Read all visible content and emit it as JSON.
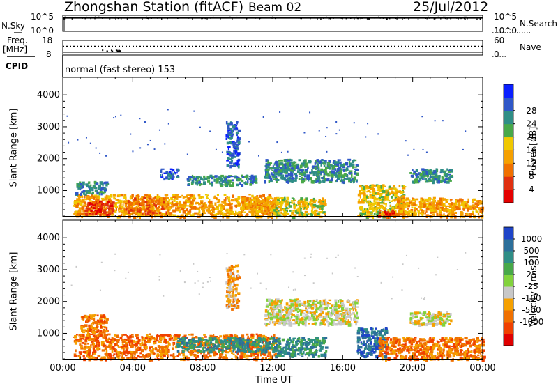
{
  "header": {
    "station": "Zhongshan Station (fitACF)",
    "beam": "Beam 02",
    "date": "25/Jul/2012"
  },
  "nsky_panel": {
    "left_label": "N.Sky",
    "left_ticks": [
      "10^5",
      "10^0"
    ],
    "right_ticks": [
      "10^5",
      "10^0"
    ],
    "right_label": "N.Search",
    "left_range": [
      0,
      5
    ],
    "trace_level": 4.2
  },
  "freq_panel": {
    "left_label_line1": "Freq.",
    "left_label_line2": "[MHz]",
    "left_ticks": [
      "18",
      "8"
    ],
    "right_ticks": [
      "60",
      "0"
    ],
    "right_label": "Nave",
    "freq_range": [
      8,
      18
    ],
    "freq_value": 10,
    "nave_range": [
      0,
      60
    ],
    "nave_value": 36
  },
  "cpid": {
    "label": "CPID",
    "value": "normal (fast stereo) 153"
  },
  "chart_data": [
    {
      "type": "heatmap",
      "ylabel": "Slant Range [km]",
      "y_ticks": [
        "1000",
        "2000",
        "3000",
        "4000"
      ],
      "ylim": [
        180,
        4550
      ],
      "xlim": [
        0,
        24
      ],
      "colorbar": {
        "label": "Power [dB]",
        "ticks": [
          "4",
          "8",
          "12",
          "16",
          "20",
          "24",
          "28"
        ],
        "colors": [
          "#0a1fff",
          "#2f57c8",
          "#2f8e86",
          "#48a849",
          "#f0c800",
          "#f5a000",
          "#f07000",
          "#e03010",
          "#e40000"
        ]
      },
      "echo_bands": [
        {
          "t_start": 0.6,
          "t_end": 12.2,
          "r_min": 200,
          "r_max": 900,
          "level": 5
        },
        {
          "t_start": 1.2,
          "t_end": 2.8,
          "r_min": 250,
          "r_max": 700,
          "level": 7
        },
        {
          "t_start": 3.5,
          "t_end": 6.0,
          "r_min": 300,
          "r_max": 800,
          "level": 6
        },
        {
          "t_start": 10.2,
          "t_end": 12.0,
          "r_min": 450,
          "r_max": 800,
          "level": 5
        },
        {
          "t_start": 0.7,
          "t_end": 2.5,
          "r_min": 900,
          "r_max": 1300,
          "level": 2
        },
        {
          "t_start": 5.5,
          "t_end": 6.6,
          "r_min": 1400,
          "r_max": 1700,
          "level": 1
        },
        {
          "t_start": 7.0,
          "t_end": 11.0,
          "r_min": 1200,
          "r_max": 1500,
          "level": 2
        },
        {
          "t_start": 11.5,
          "t_end": 16.8,
          "r_min": 1300,
          "r_max": 2000,
          "level": 2
        },
        {
          "t_start": 12.0,
          "t_end": 15.0,
          "r_min": 200,
          "r_max": 800,
          "level": 4
        },
        {
          "t_start": 16.8,
          "t_end": 19.5,
          "r_min": 200,
          "r_max": 1200,
          "level": 4
        },
        {
          "t_start": 19.0,
          "t_end": 24.0,
          "r_min": 200,
          "r_max": 800,
          "level": 5
        },
        {
          "t_start": 18.0,
          "t_end": 19.0,
          "r_min": 200,
          "r_max": 400,
          "level": 7
        },
        {
          "t_start": 19.8,
          "t_end": 22.2,
          "r_min": 1300,
          "r_max": 1700,
          "level": 2
        },
        {
          "t_start": 9.3,
          "t_end": 10.0,
          "r_min": 1800,
          "r_max": 3200,
          "level": 1
        }
      ]
    },
    {
      "type": "heatmap",
      "ylabel": "Velocity [m s-1]",
      "ylabel_left": "Slant Range [km]",
      "y_ticks": [
        "1000",
        "2000",
        "3000",
        "4000"
      ],
      "ylim": [
        180,
        4550
      ],
      "xlim": [
        0,
        24
      ],
      "x_ticks": [
        "00:00",
        "04:00",
        "08:00",
        "12:00",
        "16:00",
        "20:00",
        "00:00"
      ],
      "xlabel": "Time UT",
      "colorbar": {
        "label": "Velocity",
        "unit_base": "[m s",
        "unit_exp": "-1",
        "unit_close": "]",
        "ticks": [
          "1000",
          "500",
          "100",
          "25",
          "-25",
          "-100",
          "-500",
          "-1000"
        ],
        "colors": [
          "#1e44c8",
          "#2c6f9a",
          "#2f8e86",
          "#48a849",
          "#82d23c",
          "#c8c8c8",
          "#f5a000",
          "#f07000",
          "#f04000",
          "#e00000"
        ]
      },
      "echo_bands": [
        {
          "t_start": 0.6,
          "t_end": 12.2,
          "r_min": 200,
          "r_max": 1000,
          "level": 7
        },
        {
          "t_start": 6.5,
          "t_end": 12.0,
          "r_min": 450,
          "r_max": 900,
          "level": 2
        },
        {
          "t_start": 11.5,
          "t_end": 16.8,
          "r_min": 1300,
          "r_max": 2100,
          "level": 5
        },
        {
          "t_start": 12.0,
          "t_end": 15.0,
          "r_min": 300,
          "r_max": 900,
          "level": 2
        },
        {
          "t_start": 16.8,
          "t_end": 18.5,
          "r_min": 300,
          "r_max": 1200,
          "level": 1
        },
        {
          "t_start": 18.0,
          "t_end": 24.0,
          "r_min": 200,
          "r_max": 900,
          "level": 7
        },
        {
          "t_start": 19.8,
          "t_end": 22.2,
          "r_min": 1300,
          "r_max": 1700,
          "level": 5
        },
        {
          "t_start": 1.0,
          "t_end": 2.5,
          "r_min": 900,
          "r_max": 1600,
          "level": 7
        },
        {
          "t_start": 9.3,
          "t_end": 10.0,
          "r_min": 1800,
          "r_max": 3200,
          "level": 6
        }
      ]
    }
  ]
}
